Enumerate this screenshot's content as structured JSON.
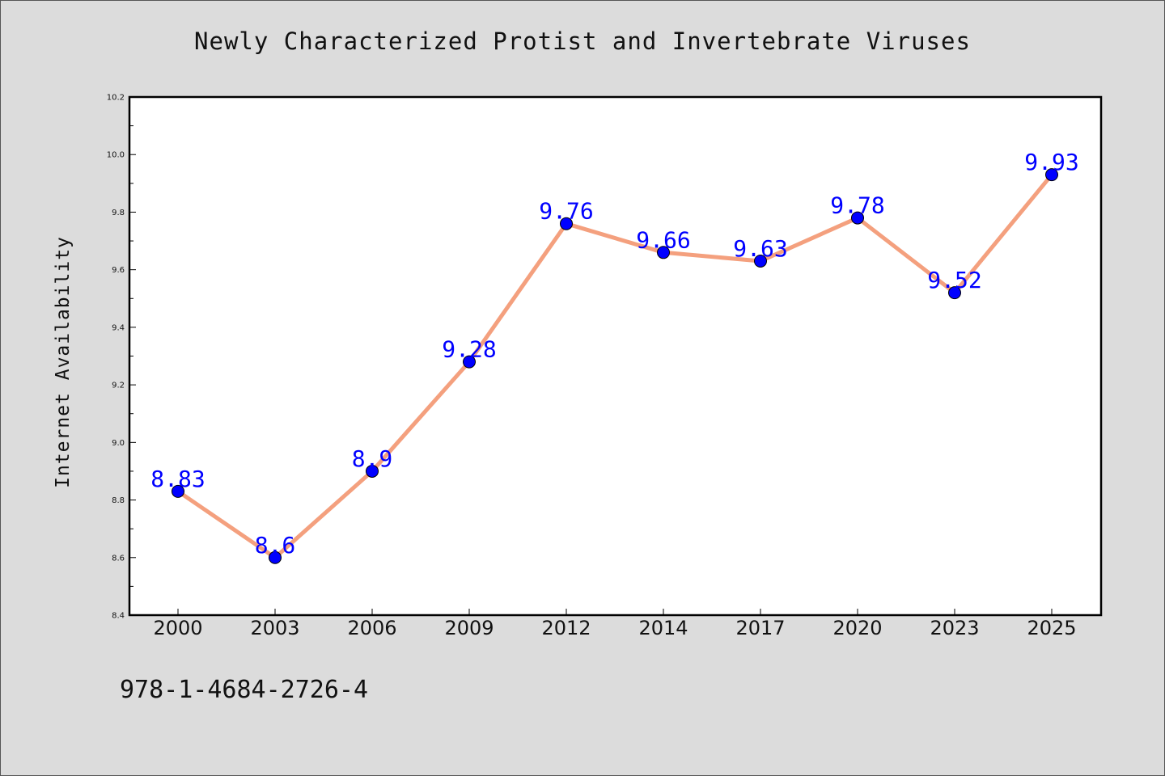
{
  "chart_data": {
    "type": "line",
    "title": "Newly Characterized Protist and Invertebrate Viruses",
    "ylabel": "Internet Availability",
    "xlabel": "",
    "categories": [
      "2000",
      "2003",
      "2006",
      "2009",
      "2012",
      "2014",
      "2017",
      "2020",
      "2023",
      "2025"
    ],
    "series": [
      {
        "values": [
          8.83,
          8.6,
          8.9,
          9.28,
          9.76,
          9.66,
          9.63,
          9.78,
          9.52,
          9.93
        ],
        "data_labels": [
          "8.83",
          "8.6",
          "8.9",
          "9.28",
          "9.76",
          "9.66",
          "9.63",
          "9.78",
          "9.52",
          "9.93"
        ],
        "line_color": "#f4a07e",
        "marker_color": "#0000ff"
      }
    ],
    "ylim": [
      8.4,
      10.2
    ],
    "yticks": [
      "8.4",
      "8.6",
      "8.8",
      "9.0",
      "9.2",
      "9.4",
      "9.6",
      "9.8",
      "10.0",
      "10.2"
    ],
    "grid": false,
    "legend": "none",
    "plot_background": "#ffffff",
    "page_background": "#dcdcdc"
  },
  "footnote": "978-1-4684-2726-4"
}
